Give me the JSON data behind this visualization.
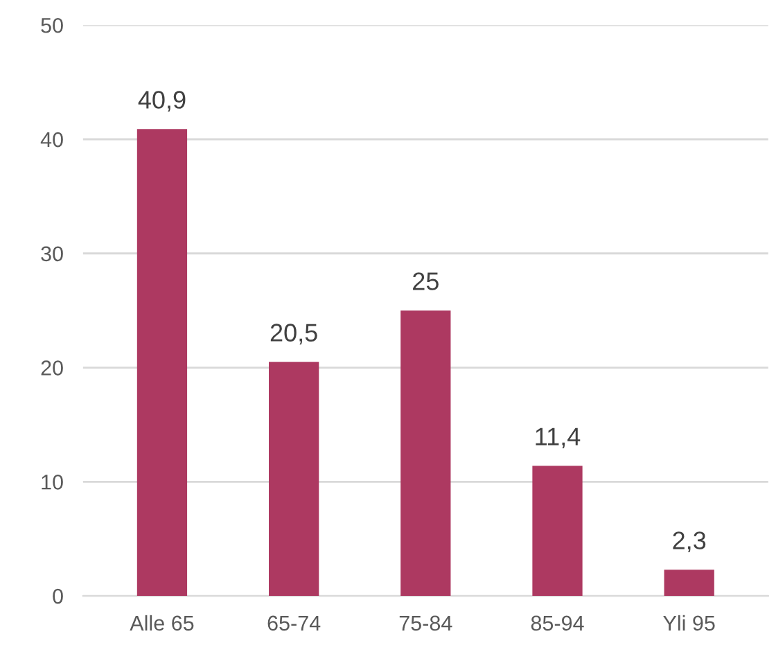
{
  "chart_data": {
    "type": "bar",
    "categories": [
      "Alle 65",
      "65-74",
      "75-84",
      "85-94",
      "Yli 95"
    ],
    "values": [
      40.9,
      20.5,
      25,
      11.4,
      2.3
    ],
    "value_labels": [
      "40,9",
      "20,5",
      "25",
      "11,4",
      "2,3"
    ],
    "color": "#ad3961",
    "ylim": [
      0,
      50
    ],
    "yticks": [
      0,
      10,
      20,
      30,
      40,
      50
    ],
    "grid": "y",
    "legend": false
  }
}
